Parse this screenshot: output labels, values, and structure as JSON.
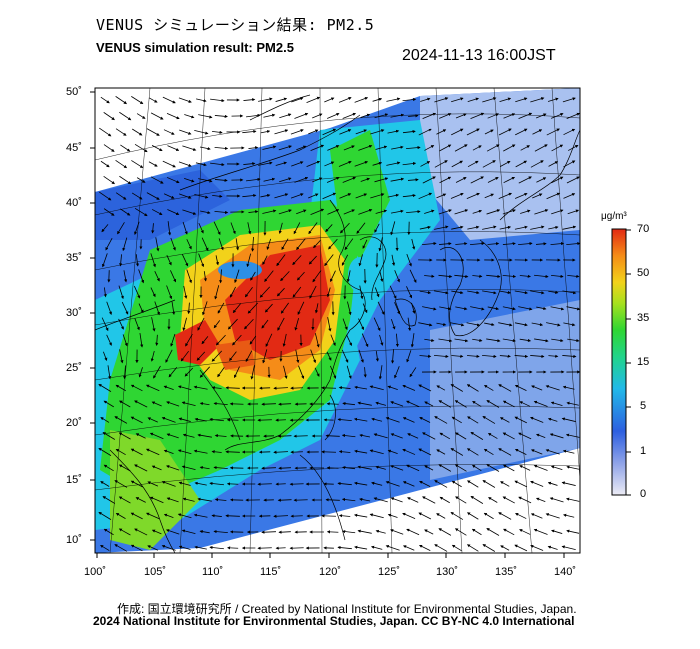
{
  "header": {
    "title_jp": "VENUS シミュレーション結果: PM2.5",
    "title_en": "VENUS simulation result: PM2.5",
    "timestamp": "2024-11-13 16:00JST"
  },
  "map": {
    "region": "East Asia",
    "lat_labels": [
      "50˚",
      "45˚",
      "40˚",
      "35˚",
      "30˚",
      "25˚",
      "20˚",
      "15˚",
      "10˚"
    ],
    "lon_labels": [
      "100˚",
      "105˚",
      "110˚",
      "115˚",
      "120˚",
      "125˚",
      "130˚",
      "135˚",
      "140˚"
    ],
    "layers": [
      "PM2.5 concentration field",
      "wind vectors",
      "coastlines and borders"
    ]
  },
  "colorbar": {
    "unit": "μg/m³",
    "ticks": [
      "70",
      "50",
      "35",
      "15",
      "5",
      "1",
      "0"
    ],
    "colors": [
      "#e6e6f0",
      "#3b6fe0",
      "#21c6e8",
      "#25d466",
      "#a6e01e",
      "#f5d418",
      "#f58c18",
      "#e83017"
    ]
  },
  "footer": {
    "credit_line": "作成: 国立環境研究所 / Created by National Institute for Environmental Studies, Japan.",
    "copyright_line": "2024 National Institute for Environmental Studies, Japan. CC BY-NC 4.0 International"
  }
}
